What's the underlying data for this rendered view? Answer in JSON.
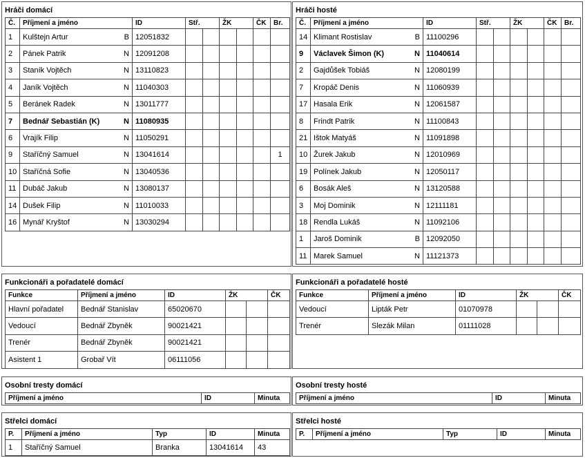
{
  "home_players": {
    "title": "Hráči domácí",
    "columns": [
      "Č.",
      "Příjmení a jméno",
      "ID",
      "Stř.",
      "ŽK",
      "ČK",
      "Br."
    ],
    "rows": [
      {
        "number": "1",
        "name": "Kulštejn Artur",
        "type": "B",
        "id": "12051832"
      },
      {
        "number": "2",
        "name": "Pánek Patrik",
        "type": "N",
        "id": "12091208"
      },
      {
        "number": "3",
        "name": "Staník Vojtěch",
        "type": "N",
        "id": "13110823"
      },
      {
        "number": "4",
        "name": "Janík Vojtěch",
        "type": "N",
        "id": "11040303"
      },
      {
        "number": "5",
        "name": "Beránek Radek",
        "type": "N",
        "id": "13011777"
      },
      {
        "number": "7",
        "name": "Bednář Sebastián (K)",
        "type": "N",
        "id": "11080935",
        "captain": true
      },
      {
        "number": "6",
        "name": "Vrajík Filip",
        "type": "N",
        "id": "11050291"
      },
      {
        "number": "9",
        "name": "Staříčný Samuel",
        "type": "N",
        "id": "13041614",
        "goals": "1"
      },
      {
        "number": "10",
        "name": "Staříčná Sofie",
        "type": "N",
        "id": "13040536"
      },
      {
        "number": "11",
        "name": "Dubáč Jakub",
        "type": "N",
        "id": "13080137"
      },
      {
        "number": "14",
        "name": "Dušek Filip",
        "type": "N",
        "id": "11010033"
      },
      {
        "number": "16",
        "name": "Mynář Kryštof",
        "type": "N",
        "id": "13030294"
      }
    ]
  },
  "away_players": {
    "title": "Hráči hosté",
    "columns": [
      "Č.",
      "Příjmení a jméno",
      "ID",
      "Stř.",
      "ŽK",
      "ČK",
      "Br."
    ],
    "rows": [
      {
        "number": "14",
        "name": "Klimant Rostislav",
        "type": "B",
        "id": "11100296"
      },
      {
        "number": "9",
        "name": "Václavek Šimon (K)",
        "type": "N",
        "id": "11040614",
        "captain": true
      },
      {
        "number": "2",
        "name": "Gajdůšek Tobiáš",
        "type": "N",
        "id": "12080199"
      },
      {
        "number": "7",
        "name": "Kropáč Denis",
        "type": "N",
        "id": "11060939"
      },
      {
        "number": "17",
        "name": "Hasala Erik",
        "type": "N",
        "id": "12061587"
      },
      {
        "number": "8",
        "name": "Frindt Patrik",
        "type": "N",
        "id": "11100843"
      },
      {
        "number": "21",
        "name": "Ištok Matyáš",
        "type": "N",
        "id": "11091898"
      },
      {
        "number": "10",
        "name": "Žurek Jakub",
        "type": "N",
        "id": "12010969"
      },
      {
        "number": "19",
        "name": "Polínek Jakub",
        "type": "N",
        "id": "12050117"
      },
      {
        "number": "6",
        "name": "Bosák Aleš",
        "type": "N",
        "id": "13120588"
      },
      {
        "number": "3",
        "name": "Moj Dominik",
        "type": "N",
        "id": "12111181"
      },
      {
        "number": "18",
        "name": "Rendla Lukáš",
        "type": "N",
        "id": "11092106"
      },
      {
        "number": "1",
        "name": "Jaroš Dominik",
        "type": "B",
        "id": "12092050"
      },
      {
        "number": "11",
        "name": "Marek Samuel",
        "type": "N",
        "id": "11121373"
      }
    ]
  },
  "home_officials": {
    "title": "Funkcionáři a pořadatelé domácí",
    "columns": [
      "Funkce",
      "Příjmení a jméno",
      "ID",
      "ŽK",
      "ČK"
    ],
    "rows": [
      {
        "role": "Hlavní pořadatel",
        "name": "Bednář Stanislav",
        "id": "65020670"
      },
      {
        "role": "Vedoucí",
        "name": "Bednář Zbyněk",
        "id": "90021421"
      },
      {
        "role": "Trenér",
        "name": "Bednář Zbyněk",
        "id": "90021421"
      },
      {
        "role": "Asistent 1",
        "name": "Grobař Vít",
        "id": "06111056"
      }
    ]
  },
  "away_officials": {
    "title": "Funkcionáři a pořadatelé hosté",
    "columns": [
      "Funkce",
      "Příjmení a jméno",
      "ID",
      "ŽK",
      "ČK"
    ],
    "rows": [
      {
        "role": "Vedoucí",
        "name": "Lipták Petr",
        "id": "01070978"
      },
      {
        "role": "Trenér",
        "name": "Slezák Milan",
        "id": "01111028"
      }
    ]
  },
  "home_penalties": {
    "title": "Osobní tresty domácí",
    "columns": [
      "Příjmení a jméno",
      "ID",
      "Minuta"
    ],
    "rows": []
  },
  "away_penalties": {
    "title": "Osobní tresty hosté",
    "columns": [
      "Příjmení a jméno",
      "ID",
      "Minuta"
    ],
    "rows": []
  },
  "home_scorers": {
    "title": "Střelci domácí",
    "columns": [
      "P.",
      "Příjmení a jméno",
      "Typ",
      "ID",
      "Minuta"
    ],
    "rows": [
      {
        "order": "1",
        "name": "Staříčný Samuel",
        "type": "Branka",
        "id": "13041614",
        "minute": "43"
      }
    ]
  },
  "away_scorers": {
    "title": "Střelci hosté",
    "columns": [
      "P.",
      "Příjmení a jméno",
      "Typ",
      "ID",
      "Minuta"
    ],
    "rows": []
  }
}
